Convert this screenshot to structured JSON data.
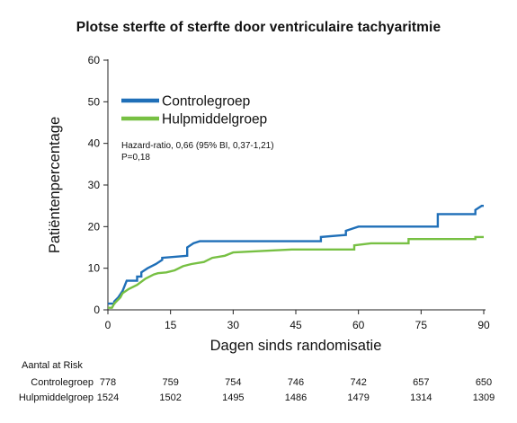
{
  "chart_data": {
    "type": "line",
    "title": "Plotse sterfte of sterfte door ventriculaire tachyaritmie",
    "xlabel": "Dagen sinds randomisatie",
    "ylabel": "Patiëntenpercentage",
    "xlim": [
      0,
      90
    ],
    "ylim": [
      0,
      60
    ],
    "x_ticks": [
      0,
      15,
      30,
      45,
      60,
      75,
      90
    ],
    "y_ticks": [
      0,
      10,
      20,
      30,
      40,
      50,
      60
    ],
    "grid": false,
    "legend_position": "top-left",
    "series": [
      {
        "name": "Controlegroep",
        "color": "#1f6fb8",
        "step_points": [
          [
            0,
            1.5
          ],
          [
            1.5,
            1.5
          ],
          [
            1.5,
            2
          ],
          [
            2.5,
            3
          ],
          [
            3.5,
            4.5
          ],
          [
            4.5,
            7
          ],
          [
            7,
            7
          ],
          [
            7,
            8
          ],
          [
            8,
            8
          ],
          [
            8,
            9
          ],
          [
            9.5,
            10
          ],
          [
            11.5,
            11
          ],
          [
            13,
            12
          ],
          [
            13,
            12.5
          ],
          [
            19,
            13
          ],
          [
            19,
            15
          ],
          [
            20.5,
            16
          ],
          [
            22,
            16.5
          ],
          [
            51,
            16.5
          ],
          [
            51,
            17.5
          ],
          [
            57,
            18
          ],
          [
            57,
            19
          ],
          [
            60,
            20
          ],
          [
            79,
            20
          ],
          [
            79,
            23
          ],
          [
            88,
            23
          ],
          [
            88,
            24
          ],
          [
            89.5,
            25
          ],
          [
            90,
            25
          ]
        ]
      },
      {
        "name": "Hulpmiddelgroep",
        "color": "#77c043",
        "step_points": [
          [
            0,
            0.5
          ],
          [
            1,
            0.5
          ],
          [
            1.5,
            1.5
          ],
          [
            3,
            3
          ],
          [
            3.5,
            4
          ],
          [
            5,
            5
          ],
          [
            7,
            6
          ],
          [
            9,
            7.5
          ],
          [
            11,
            8.5
          ],
          [
            12,
            8.8
          ],
          [
            14,
            9
          ],
          [
            16,
            9.5
          ],
          [
            18,
            10.5
          ],
          [
            20,
            11
          ],
          [
            23,
            11.5
          ],
          [
            25,
            12.5
          ],
          [
            28,
            13
          ],
          [
            30,
            13.8
          ],
          [
            44,
            14.5
          ],
          [
            59,
            14.5
          ],
          [
            59,
            15.5
          ],
          [
            63,
            16
          ],
          [
            72,
            16
          ],
          [
            72,
            17
          ],
          [
            88,
            17
          ],
          [
            88,
            17.5
          ],
          [
            90,
            17.5
          ]
        ]
      }
    ],
    "annotation": [
      "Hazard-ratio, 0,66 (95% BI, 0,37-1,21)",
      "P=0,18"
    ],
    "at_risk": {
      "title": "Aantal at Risk",
      "rows": [
        {
          "label": "Controlegroep",
          "values": [
            "778",
            "759",
            "754",
            "746",
            "742",
            "657",
            "650"
          ]
        },
        {
          "label": "Hulpmiddelgroep",
          "values": [
            "1524",
            "1502",
            "1495",
            "1486",
            "1479",
            "1314",
            "1309"
          ]
        }
      ]
    }
  }
}
